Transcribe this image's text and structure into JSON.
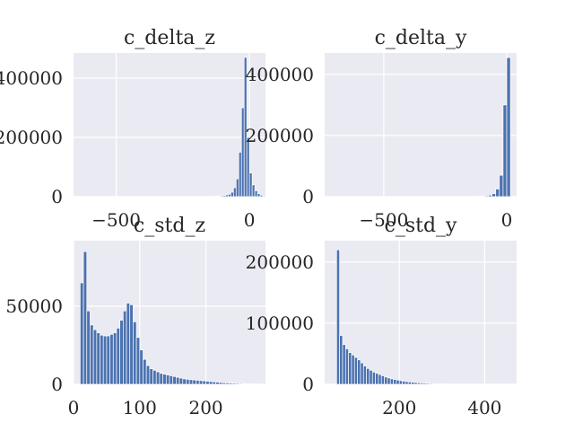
{
  "chart_data": [
    {
      "type": "bar",
      "title": "c_delta_z",
      "xlim": [
        -660,
        60
      ],
      "ylim": [
        0,
        485000
      ],
      "xticks": [
        -500,
        0
      ],
      "yticks": [
        0,
        200000,
        400000
      ],
      "xtick_labels": [
        "−500",
        "0"
      ],
      "ytick_labels": [
        "0",
        "200000",
        "400000"
      ],
      "bin_width": 10,
      "bins": [
        -150,
        -140,
        -130,
        -120,
        -110,
        -100,
        -90,
        -80,
        -70,
        -60,
        -50,
        -40,
        -30,
        -20,
        -10,
        0,
        10,
        20,
        30,
        40,
        50,
        60,
        70,
        80
      ],
      "values": [
        500,
        1000,
        1500,
        2000,
        3000,
        4000,
        6000,
        8000,
        15000,
        30000,
        60000,
        150000,
        300000,
        470000,
        200000,
        80000,
        40000,
        20000,
        10000,
        5000,
        3000,
        1500,
        800,
        400
      ]
    },
    {
      "type": "bar",
      "title": "c_delta_y",
      "xlim": [
        -740,
        40
      ],
      "ylim": [
        0,
        470000
      ],
      "xticks": [
        -500,
        0
      ],
      "yticks": [
        0,
        200000,
        400000
      ],
      "xtick_labels": [
        "−500",
        "0"
      ],
      "ytick_labels": [
        "0",
        "200000",
        "400000"
      ],
      "bin_width": 15,
      "bins": [
        -120,
        -105,
        -90,
        -75,
        -60,
        -45,
        -30,
        -15,
        0
      ],
      "values": [
        1000,
        2000,
        3000,
        5000,
        10000,
        25000,
        70000,
        300000,
        455000
      ]
    },
    {
      "type": "bar",
      "title": "c_std_z",
      "xlim": [
        0,
        290
      ],
      "ylim": [
        0,
        92000
      ],
      "xticks": [
        0,
        100,
        200
      ],
      "yticks": [
        0,
        50000
      ],
      "xtick_labels": [
        "0",
        "100",
        "200"
      ],
      "ytick_labels": [
        "0",
        "50000"
      ],
      "bin_width": 5,
      "bins": [
        10,
        15,
        20,
        25,
        30,
        35,
        40,
        45,
        50,
        55,
        60,
        65,
        70,
        75,
        80,
        85,
        90,
        95,
        100,
        105,
        110,
        115,
        120,
        125,
        130,
        135,
        140,
        145,
        150,
        155,
        160,
        165,
        170,
        175,
        180,
        185,
        190,
        195,
        200,
        205,
        210,
        215,
        220,
        225,
        230,
        235,
        240,
        245,
        250,
        255,
        260,
        265
      ],
      "values": [
        65000,
        85000,
        47000,
        38000,
        35000,
        33000,
        31500,
        31000,
        31000,
        32000,
        33000,
        36000,
        41000,
        47000,
        52000,
        51000,
        40000,
        30000,
        22000,
        16000,
        12000,
        10000,
        9000,
        8000,
        7000,
        6500,
        6000,
        5500,
        5000,
        4500,
        4000,
        3500,
        3200,
        3000,
        2800,
        2600,
        2400,
        2200,
        2000,
        1800,
        1600,
        1400,
        1200,
        1000,
        900,
        800,
        700,
        600,
        500,
        400,
        300,
        200
      ]
    },
    {
      "type": "bar",
      "title": "c_std_y",
      "xlim": [
        25,
        475
      ],
      "ylim": [
        0,
        235000
      ],
      "xticks": [
        200,
        400
      ],
      "yticks": [
        0,
        100000,
        200000
      ],
      "xtick_labels": [
        "200",
        "400"
      ],
      "ytick_labels": [
        "0",
        "100000",
        "200000"
      ],
      "bin_width": 7,
      "bins": [
        53,
        60,
        67,
        74,
        81,
        88,
        95,
        102,
        109,
        116,
        123,
        130,
        137,
        144,
        151,
        158,
        165,
        172,
        179,
        186,
        193,
        200,
        207,
        214,
        221,
        228,
        235,
        242,
        249,
        256,
        263,
        270,
        277,
        284,
        291,
        298,
        305,
        312,
        319,
        326,
        333,
        340,
        347
      ],
      "values": [
        220000,
        80000,
        65000,
        58000,
        52000,
        48000,
        44000,
        40000,
        35000,
        30000,
        26000,
        23000,
        20000,
        18000,
        16000,
        14000,
        12000,
        10500,
        9000,
        8000,
        7000,
        6000,
        5200,
        4500,
        4000,
        3500,
        3000,
        2600,
        2200,
        1900,
        1600,
        1400,
        1200,
        1000,
        850,
        700,
        600,
        500,
        400,
        300,
        250,
        200,
        150
      ]
    }
  ]
}
